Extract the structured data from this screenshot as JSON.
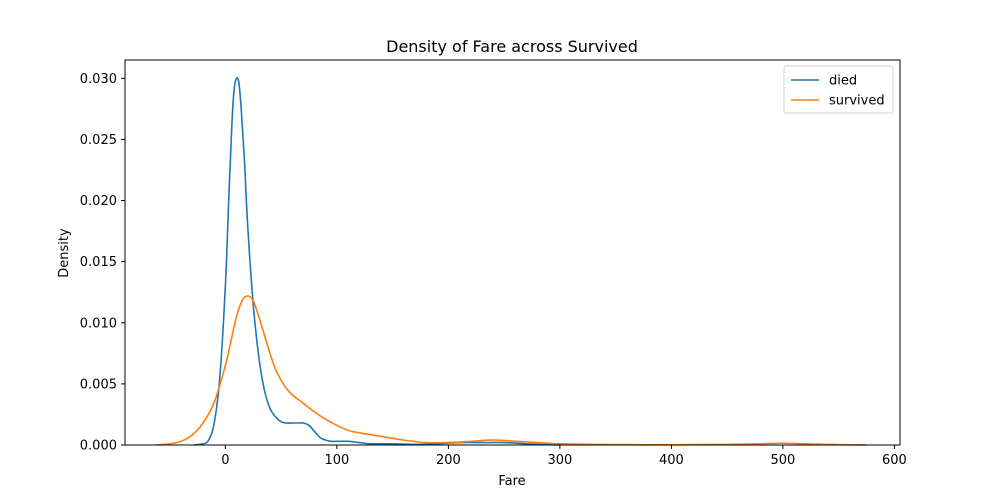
{
  "chart_data": {
    "type": "line",
    "title": "Density of Fare across Survived",
    "xlabel": "Fare",
    "ylabel": "Density",
    "xlim": [
      -90,
      605
    ],
    "ylim": [
      0,
      0.0315
    ],
    "x_ticks": [
      0,
      100,
      200,
      300,
      400,
      500,
      600
    ],
    "x_tick_labels": [
      "0",
      "100",
      "200",
      "300",
      "400",
      "500",
      "600"
    ],
    "y_ticks": [
      0,
      0.005,
      0.01,
      0.015,
      0.02,
      0.025,
      0.03
    ],
    "y_tick_labels": [
      "0.000",
      "0.005",
      "0.010",
      "0.015",
      "0.020",
      "0.025",
      "0.030"
    ],
    "grid": false,
    "legend_position": "top-right",
    "series": [
      {
        "name": "died",
        "color": "#1f77b4",
        "x": [
          -28,
          -20,
          -15,
          -10,
          -5,
          0,
          3,
          6,
          8,
          10,
          12,
          14,
          17,
          20,
          25,
          30,
          35,
          40,
          45,
          50,
          55,
          60,
          65,
          70,
          75,
          80,
          85,
          90,
          95,
          100,
          110,
          120,
          130,
          150,
          170,
          190,
          210,
          230,
          250,
          270,
          290,
          300
        ],
        "y": [
          0,
          0.0001,
          0.0004,
          0.0018,
          0.0055,
          0.013,
          0.02,
          0.0265,
          0.0292,
          0.03,
          0.0297,
          0.0278,
          0.0235,
          0.018,
          0.0115,
          0.0072,
          0.0045,
          0.003,
          0.0023,
          0.0019,
          0.0018,
          0.0018,
          0.0018,
          0.0018,
          0.0016,
          0.0011,
          0.0006,
          0.0004,
          0.0003,
          0.0003,
          0.0003,
          0.0002,
          0.0001,
          0.0001,
          5e-05,
          0.0001,
          0.0002,
          0.0002,
          0.0002,
          0.0001,
          2e-05,
          0
        ]
      },
      {
        "name": "survived",
        "color": "#ff7f0e",
        "x": [
          -62,
          -50,
          -40,
          -30,
          -20,
          -10,
          0,
          5,
          10,
          15,
          20,
          25,
          30,
          35,
          40,
          45,
          50,
          55,
          60,
          70,
          80,
          90,
          100,
          110,
          120,
          140,
          160,
          180,
          200,
          220,
          240,
          260,
          280,
          300,
          350,
          400,
          450,
          480,
          500,
          520,
          540,
          560,
          575
        ],
        "y": [
          0,
          0.0001,
          0.0003,
          0.0008,
          0.0018,
          0.0035,
          0.0065,
          0.0085,
          0.0105,
          0.0118,
          0.0122,
          0.0118,
          0.0105,
          0.009,
          0.0075,
          0.0062,
          0.0053,
          0.0046,
          0.0041,
          0.0034,
          0.0027,
          0.0021,
          0.0016,
          0.0012,
          0.001,
          0.0007,
          0.0004,
          0.0002,
          0.0002,
          0.0003,
          0.0004,
          0.0003,
          0.0002,
          0.0001,
          3e-05,
          2e-05,
          5e-05,
          0.0001,
          0.00015,
          0.0001,
          5e-05,
          1e-05,
          0
        ]
      }
    ]
  }
}
